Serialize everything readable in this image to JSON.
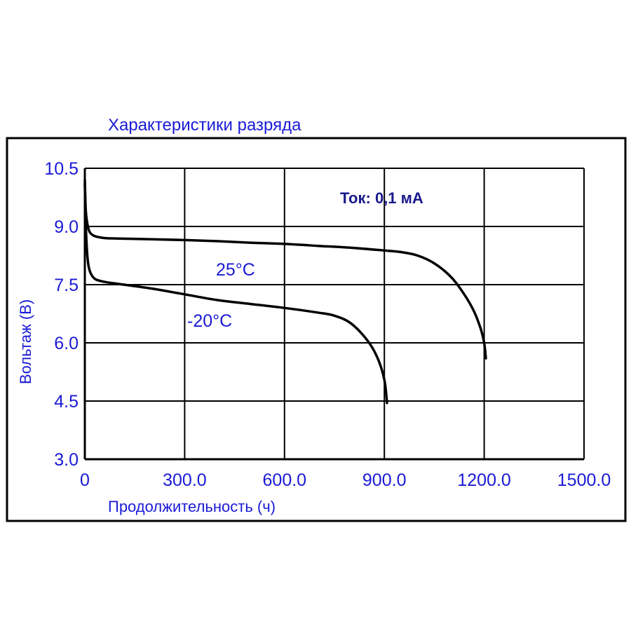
{
  "chart_data": {
    "type": "line",
    "title": "Характеристики разряда",
    "xlabel": "Продолжительность (ч)",
    "ylabel": "Вольтаж (В)",
    "xlim": [
      0,
      1500
    ],
    "ylim": [
      3.0,
      10.5
    ],
    "x_ticks": [
      "0",
      "300.0",
      "600.0",
      "900.0",
      "1200.0",
      "1500.0"
    ],
    "y_ticks": [
      "3.0",
      "4.5",
      "6.0",
      "7.5",
      "9.0",
      "10.5"
    ],
    "annotation": "Ток: 0,1 мА",
    "grid": true,
    "series": [
      {
        "name": "25°C",
        "x": [
          0,
          3,
          8,
          15,
          30,
          60,
          100,
          200,
          300,
          400,
          500,
          600,
          700,
          800,
          900,
          950,
          1000,
          1050,
          1100,
          1140,
          1170,
          1190,
          1200,
          1205
        ],
        "y": [
          10.2,
          9.4,
          9.05,
          8.85,
          8.75,
          8.7,
          8.69,
          8.67,
          8.65,
          8.62,
          8.58,
          8.55,
          8.5,
          8.45,
          8.38,
          8.34,
          8.25,
          8.05,
          7.7,
          7.25,
          6.8,
          6.35,
          6.0,
          5.6
        ]
      },
      {
        "name": "-20°C",
        "x": [
          0,
          3,
          8,
          15,
          30,
          60,
          100,
          200,
          300,
          400,
          500,
          600,
          700,
          750,
          800,
          850,
          880,
          900,
          908
        ],
        "y": [
          10.1,
          9.0,
          8.2,
          7.85,
          7.65,
          7.57,
          7.52,
          7.4,
          7.25,
          7.1,
          7.0,
          6.9,
          6.78,
          6.7,
          6.5,
          6.05,
          5.6,
          5.05,
          4.45
        ]
      }
    ],
    "colors": {
      "text": "#1a1ad6",
      "grid": "#000000",
      "curve": "#000000"
    }
  }
}
